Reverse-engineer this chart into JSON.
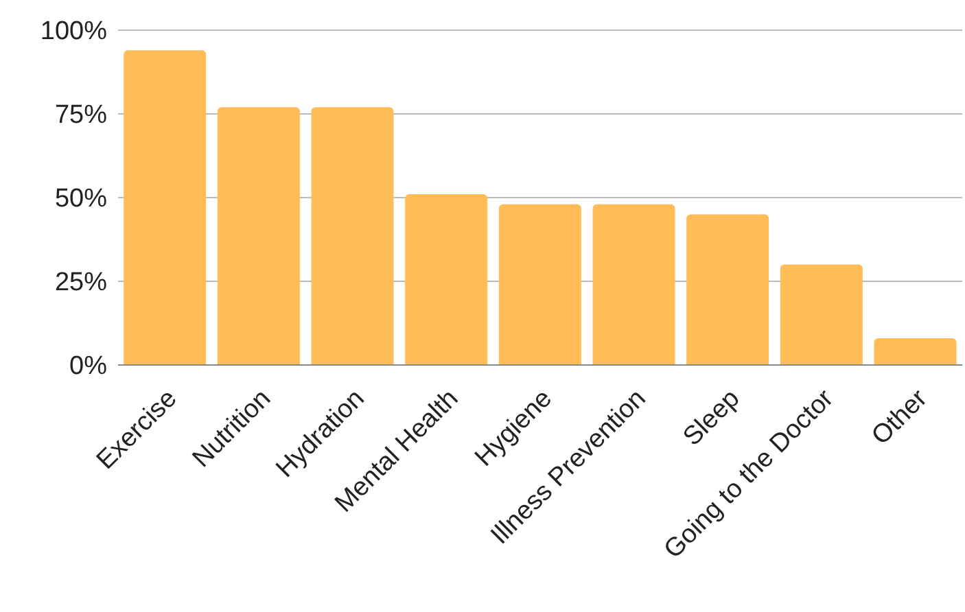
{
  "chart_data": {
    "type": "bar",
    "categories": [
      "Exercise",
      "Nutrition",
      "Hydration",
      "Mental Health",
      "Hygiene",
      "Illness Prevention",
      "Sleep",
      "Going to the Doctor",
      "Other"
    ],
    "values": [
      94,
      77,
      77,
      51,
      48,
      48,
      45,
      30,
      8
    ],
    "color": "#ffbc57",
    "ylim": [
      0,
      100
    ],
    "yticks": [
      {
        "value": 0,
        "label": "0%"
      },
      {
        "value": 25,
        "label": "25%"
      },
      {
        "value": 50,
        "label": "50%"
      },
      {
        "value": 75,
        "label": "75%"
      },
      {
        "value": 100,
        "label": "100%"
      }
    ],
    "grid": "y"
  }
}
